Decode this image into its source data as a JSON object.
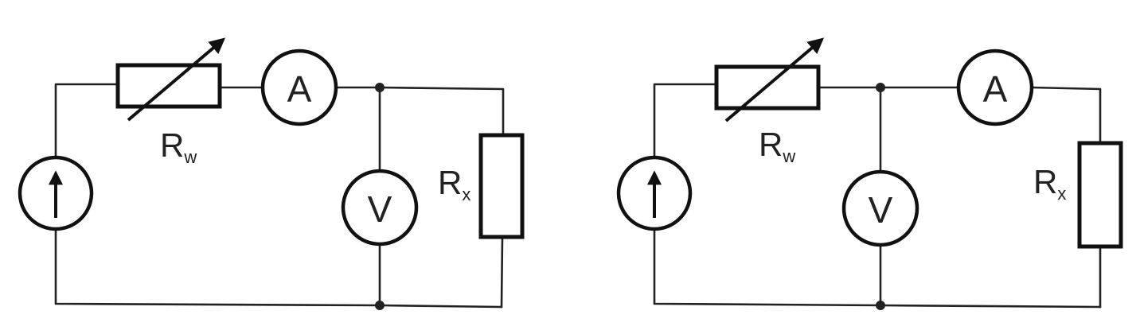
{
  "circuits": [
    {
      "ammeter_label": "A",
      "voltmeter_label": "V",
      "rheostat_label": {
        "main": "R",
        "sub": "w"
      },
      "resistor_label": {
        "main": "R",
        "sub": "x"
      }
    },
    {
      "ammeter_label": "A",
      "voltmeter_label": "V",
      "rheostat_label": {
        "main": "R",
        "sub": "w"
      },
      "resistor_label": {
        "main": "R",
        "sub": "x"
      }
    }
  ],
  "colors": {
    "line": "#222222",
    "background": "#ffffff"
  }
}
